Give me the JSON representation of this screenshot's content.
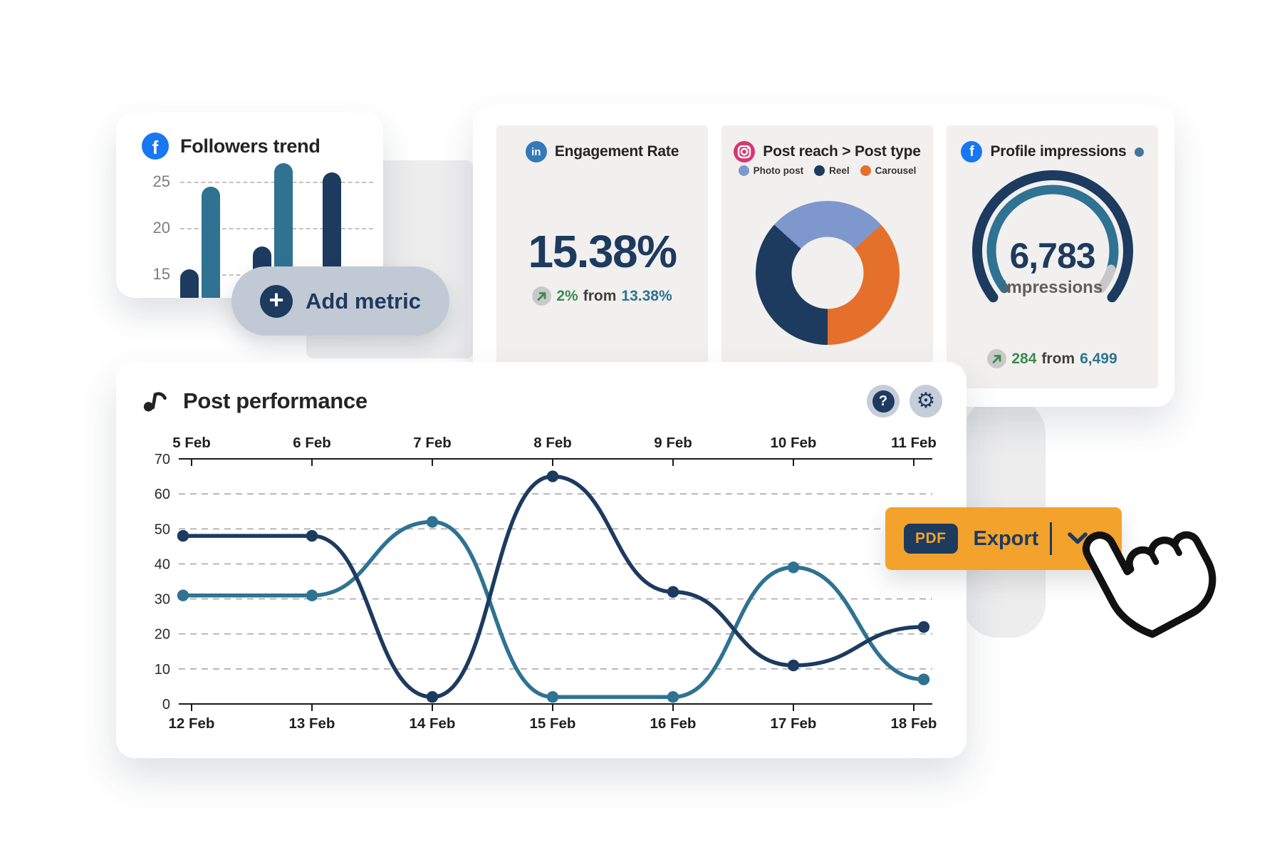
{
  "colors": {
    "navy": "#1d3a5f",
    "teal": "#2f7292",
    "orange": "#e4702b",
    "light_blue": "#7e98ce",
    "green": "#3d8a4e",
    "export_orange": "#f3a22c",
    "card_gray": "#f1f0ee",
    "gauge_rest_gray": "#c8c8c8",
    "grid_gray": "#c3c3c3",
    "facebook_blue": "#1877f2",
    "linkedin_blue": "#3579b8",
    "instagram_pink": "#d63672"
  },
  "icons": {
    "facebook": "f",
    "linkedin": "in",
    "plus": "+",
    "help": "?",
    "gear": "⚙"
  },
  "followers_card": {
    "title": "Followers trend"
  },
  "add_metric_button": {
    "label": "Add metric"
  },
  "engagement_card": {
    "title": "Engagement Rate",
    "value": "15.38%",
    "delta": "2%",
    "from_word": "from",
    "previous": "13.38%"
  },
  "post_reach_card": {
    "title": "Post reach > Post type",
    "legend": [
      "Photo post",
      "Reel",
      "Carousel"
    ]
  },
  "impressions_card": {
    "title": "Profile impressions",
    "value": "6,783",
    "unit": "impressions",
    "delta": "284",
    "from_word": "from",
    "previous": "6,499"
  },
  "performance_card": {
    "title": "Post performance"
  },
  "export_button": {
    "badge": "PDF",
    "label": "Export"
  },
  "chart_data": [
    {
      "id": "followers_trend_bars",
      "type": "bar",
      "title": "Followers trend",
      "yticks": [
        25,
        20,
        15
      ],
      "ylim": [
        11.5,
        28.5
      ],
      "values": [
        15.5,
        24.5,
        18,
        27,
        26
      ],
      "bar_colors": [
        "navy",
        "teal",
        "navy",
        "teal",
        "navy"
      ],
      "grid": "dashed horizontal, baseline clipped by card edge"
    },
    {
      "id": "post_reach_donut",
      "type": "pie",
      "title": "Post reach > Post type",
      "slices": [
        {
          "label": "Photo post",
          "value": 26.7,
          "color": "#7e98ce"
        },
        {
          "label": "Carousel",
          "value": 36.6,
          "color": "#e4702b"
        },
        {
          "label": "Reel",
          "value": 36.7,
          "color": "#1d3a5f"
        }
      ],
      "legend_order": [
        "Photo post",
        "Reel",
        "Carousel"
      ],
      "start_angle_deg": -48,
      "inner_radius_pct": 50
    },
    {
      "id": "impressions_gauge",
      "type": "gauge",
      "title": "Profile impressions",
      "value": 6783,
      "previous": 6499,
      "delta": 284,
      "fraction_filled": 0.92,
      "sweep_deg": 256,
      "start_deg": -128,
      "track_colors": {
        "outer": "navy",
        "progress": "teal",
        "remainder": "gauge_rest_gray"
      }
    },
    {
      "id": "post_performance_lines",
      "type": "line",
      "title": "Post performance",
      "x_top_labels": [
        "5 Feb",
        "6 Feb",
        "7 Feb",
        "8 Feb",
        "9 Feb",
        "10 Feb",
        "11 Feb"
      ],
      "x_bottom_labels": [
        "12 Feb",
        "13 Feb",
        "14 Feb",
        "15 Feb",
        "16 Feb",
        "17 Feb",
        "18 Feb"
      ],
      "ylim": [
        0,
        70
      ],
      "yticks": [
        0,
        10,
        20,
        30,
        40,
        50,
        60,
        70
      ],
      "grid": "dashed horizontal between solid top/bottom axes",
      "legend_position": "none",
      "series": [
        {
          "name": "series-dark-blue",
          "color": "#1d3a5f",
          "values": [
            48,
            48,
            2,
            65,
            32,
            11,
            22
          ]
        },
        {
          "name": "series-light-blue",
          "color": "#2f7292",
          "values": [
            31,
            31,
            52,
            2,
            2,
            39,
            7
          ]
        }
      ]
    }
  ]
}
